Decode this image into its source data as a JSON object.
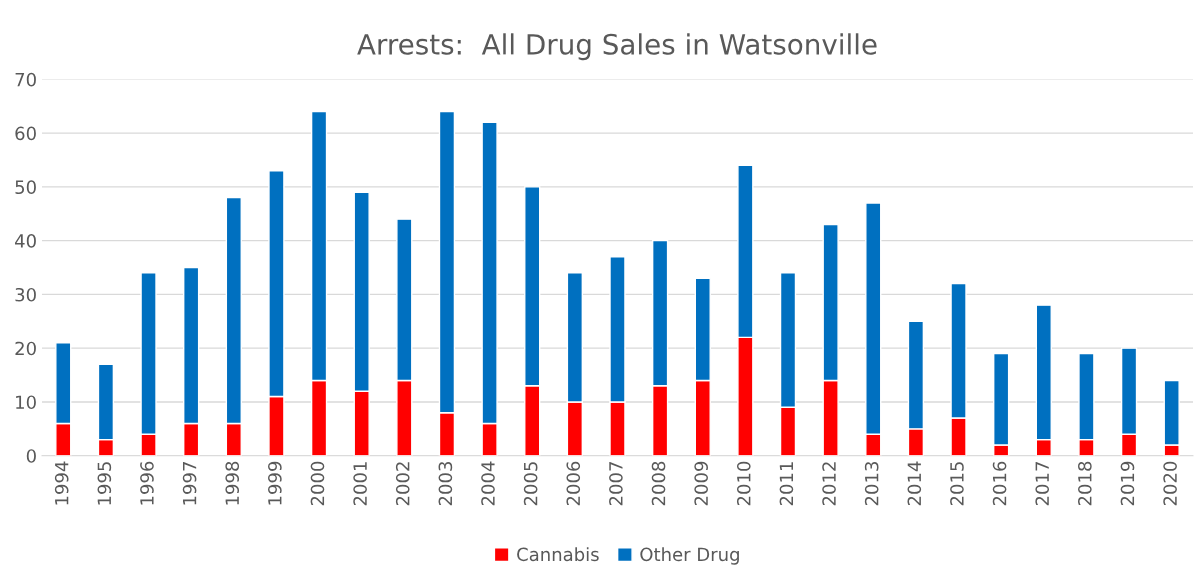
{
  "chart_data": {
    "type": "bar",
    "title": "Arrests:  All Drug Sales in Watsonville",
    "categories": [
      "1994",
      "1995",
      "1996",
      "1997",
      "1998",
      "1999",
      "2000",
      "2001",
      "2002",
      "2003",
      "2004",
      "2005",
      "2006",
      "2007",
      "2008",
      "2009",
      "2010",
      "2011",
      "2012",
      "2013",
      "2014",
      "2015",
      "2016",
      "2017",
      "2018",
      "2019",
      "2020"
    ],
    "series": [
      {
        "name": "Cannabis",
        "color": "#ff0000",
        "values": [
          6,
          3,
          4,
          6,
          6,
          11,
          14,
          12,
          14,
          8,
          6,
          13,
          10,
          10,
          13,
          14,
          22,
          9,
          14,
          4,
          5,
          7,
          2,
          3,
          3,
          4,
          2
        ]
      },
      {
        "name": "Other Drug",
        "color": "#0070c0",
        "values": [
          15,
          14,
          30,
          29,
          42,
          42,
          50,
          37,
          30,
          56,
          56,
          37,
          24,
          27,
          27,
          19,
          32,
          25,
          29,
          43,
          20,
          25,
          17,
          25,
          16,
          16,
          12
        ]
      }
    ],
    "stacked": true,
    "ylim": [
      0,
      70
    ],
    "yticks": [
      0,
      10,
      20,
      30,
      40,
      50,
      60,
      70
    ],
    "grid": "y",
    "legend": "bottom"
  }
}
